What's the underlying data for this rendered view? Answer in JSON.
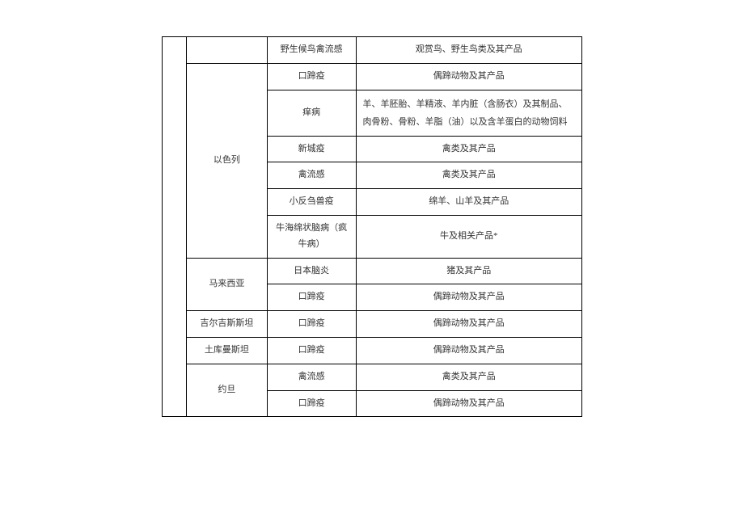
{
  "table": {
    "rows": [
      {
        "country": "",
        "disease": "野生候鸟禽流感",
        "product": "观赏鸟、野生鸟类及其产品",
        "country_rowspan": 1,
        "blank_rowspan": 14
      },
      {
        "country": "以色列",
        "disease": "口蹄疫",
        "product": "偶蹄动物及其产品",
        "country_rowspan": 6
      },
      {
        "disease": "痒病",
        "product": "羊、羊胚胎、羊精液、羊内脏（含肠衣）及其制品、肉骨粉、骨粉、羊脂（油）以及含羊蛋白的动物饲料",
        "product_left": true
      },
      {
        "disease": "新城疫",
        "product": "禽类及其产品"
      },
      {
        "disease": "禽流感",
        "product": "禽类及其产品"
      },
      {
        "disease": "小反刍兽疫",
        "product": "绵羊、山羊及其产品"
      },
      {
        "disease": "牛海绵状脑病（疯牛病）",
        "product": "牛及相关产品*"
      },
      {
        "country": "马来西亚",
        "disease": "日本脑炎",
        "product": "猪及其产品",
        "country_rowspan": 2
      },
      {
        "disease": "口蹄疫",
        "product": "偶蹄动物及其产品"
      },
      {
        "country": "吉尔吉斯斯坦",
        "disease": "口蹄疫",
        "product": "偶蹄动物及其产品",
        "country_rowspan": 1
      },
      {
        "country": "土库曼斯坦",
        "disease": "口蹄疫",
        "product": "偶蹄动物及其产品",
        "country_rowspan": 1
      },
      {
        "country": "约旦",
        "disease": "禽流感",
        "product": "禽类及其产品",
        "country_rowspan": 2
      },
      {
        "disease": "口蹄疫",
        "product": "偶蹄动物及其产品"
      }
    ],
    "colors": {
      "border": "#000000",
      "text": "#333333",
      "background": "#ffffff"
    },
    "font_size": 11
  }
}
